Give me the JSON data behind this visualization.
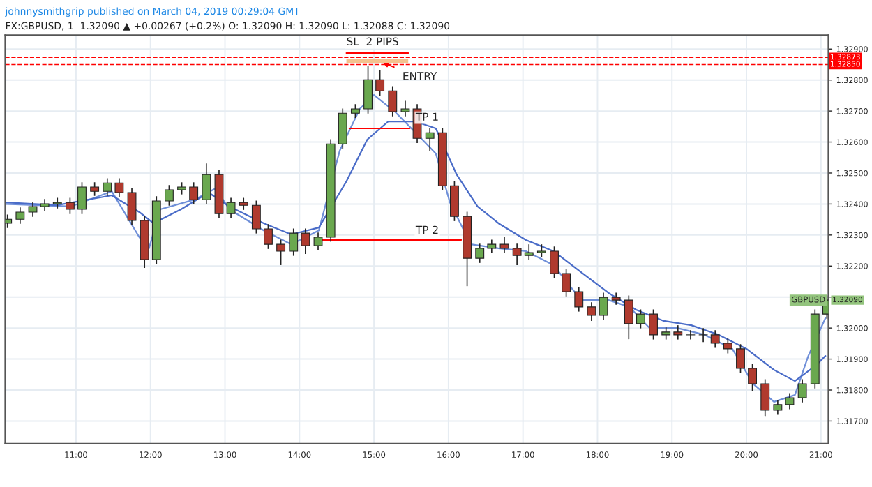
{
  "chart_data": {
    "type": "candlestick",
    "title": "johnnysmithgrip published on March 04, 2019 00:29:04 GMT",
    "subtitle": "FX:GBPUSD, 1  1.32090 ▲ +0.00267 (+0.2%) O: 1.32090 H: 1.32090 L: 1.32088 C: 1.32090",
    "x": [
      10.08,
      10.25,
      10.42,
      10.58,
      10.75,
      10.92,
      11.08,
      11.25,
      11.42,
      11.58,
      11.75,
      11.92,
      12.08,
      12.25,
      12.42,
      12.58,
      12.75,
      12.92,
      13.08,
      13.25,
      13.42,
      13.58,
      13.75,
      13.92,
      14.08,
      14.25,
      14.42,
      14.58,
      14.75,
      14.92,
      15.08,
      15.25,
      15.42,
      15.58,
      15.75,
      15.92,
      16.08,
      16.25,
      16.42,
      16.58,
      16.75,
      16.92,
      17.08,
      17.25,
      17.42,
      17.58,
      17.75,
      17.92,
      18.08,
      18.25,
      18.42,
      18.58,
      18.75,
      18.92,
      19.08,
      19.25,
      19.42,
      19.58,
      19.75,
      19.92,
      20.08,
      20.25,
      20.42,
      20.58,
      20.75,
      20.92,
      21.08
    ],
    "ohlc": [
      [
        1.32338,
        1.32366,
        1.32323,
        1.32351
      ],
      [
        1.32351,
        1.32389,
        1.32336,
        1.32374
      ],
      [
        1.32374,
        1.32407,
        1.32359,
        1.32392
      ],
      [
        1.32392,
        1.32416,
        1.32377,
        1.32401
      ],
      [
        1.32401,
        1.3242,
        1.32386,
        1.32405
      ],
      [
        1.32405,
        1.3242,
        1.32368,
        1.32383
      ],
      [
        1.32383,
        1.3247,
        1.32368,
        1.32455
      ],
      [
        1.32455,
        1.3247,
        1.32426,
        1.32441
      ],
      [
        1.32441,
        1.32483,
        1.32426,
        1.32468
      ],
      [
        1.32468,
        1.32483,
        1.32422,
        1.32437
      ],
      [
        1.32437,
        1.32452,
        1.32332,
        1.32347
      ],
      [
        1.32347,
        1.32362,
        1.32194,
        1.32221
      ],
      [
        1.32221,
        1.32425,
        1.32206,
        1.3241
      ],
      [
        1.3241,
        1.32461,
        1.32395,
        1.32446
      ],
      [
        1.32446,
        1.3247,
        1.32431,
        1.32455
      ],
      [
        1.32455,
        1.3247,
        1.32399,
        1.32414
      ],
      [
        1.32414,
        1.32531,
        1.32399,
        1.32495
      ],
      [
        1.32495,
        1.3251,
        1.32354,
        1.32369
      ],
      [
        1.32369,
        1.3242,
        1.32354,
        1.32405
      ],
      [
        1.32405,
        1.3242,
        1.32381,
        1.32396
      ],
      [
        1.32396,
        1.32411,
        1.32305,
        1.3232
      ],
      [
        1.3232,
        1.32335,
        1.32255,
        1.3227
      ],
      [
        1.3227,
        1.32285,
        1.32203,
        1.32248
      ],
      [
        1.32248,
        1.32321,
        1.32233,
        1.32306
      ],
      [
        1.32306,
        1.32321,
        1.32239,
        1.32266
      ],
      [
        1.32266,
        1.32308,
        1.32251,
        1.32293
      ],
      [
        1.32293,
        1.32609,
        1.32278,
        1.32594
      ],
      [
        1.32594,
        1.32708,
        1.32579,
        1.32693
      ],
      [
        1.32693,
        1.32722,
        1.32678,
        1.32707
      ],
      [
        1.32707,
        1.32846,
        1.32692,
        1.32801
      ],
      [
        1.32801,
        1.32832,
        1.3275,
        1.32765
      ],
      [
        1.32765,
        1.3278,
        1.32683,
        1.32698
      ],
      [
        1.32698,
        1.32733,
        1.32683,
        1.32707
      ],
      [
        1.32707,
        1.32722,
        1.32597,
        1.32612
      ],
      [
        1.32612,
        1.32645,
        1.32572,
        1.3263
      ],
      [
        1.3263,
        1.32645,
        1.32444,
        1.32459
      ],
      [
        1.32459,
        1.32474,
        1.32345,
        1.3236
      ],
      [
        1.3236,
        1.32375,
        1.32135,
        1.32225
      ],
      [
        1.32225,
        1.32272,
        1.3221,
        1.32257
      ],
      [
        1.32257,
        1.32285,
        1.32242,
        1.3227
      ],
      [
        1.3227,
        1.32293,
        1.32242,
        1.32257
      ],
      [
        1.32257,
        1.32272,
        1.32203,
        1.32234
      ],
      [
        1.32234,
        1.3227,
        1.32219,
        1.32243
      ],
      [
        1.32243,
        1.3227,
        1.32228,
        1.32248
      ],
      [
        1.32248,
        1.32263,
        1.32161,
        1.32176
      ],
      [
        1.32176,
        1.32191,
        1.32102,
        1.32117
      ],
      [
        1.32117,
        1.32132,
        1.32053,
        1.32068
      ],
      [
        1.32068,
        1.32083,
        1.32023,
        1.32041
      ],
      [
        1.32041,
        1.32114,
        1.32026,
        1.32099
      ],
      [
        1.32099,
        1.32114,
        1.32075,
        1.3209
      ],
      [
        1.3209,
        1.32105,
        1.31964,
        1.32014
      ],
      [
        1.32014,
        1.3206,
        1.31999,
        1.32045
      ],
      [
        1.32045,
        1.3206,
        1.31963,
        1.31978
      ],
      [
        1.31978,
        1.32002,
        1.31963,
        1.31987
      ],
      [
        1.31987,
        1.32009,
        1.31963,
        1.31978
      ],
      [
        1.31978,
        1.31993,
        1.31963,
        1.31978
      ],
      [
        1.31978,
        1.32,
        1.31955,
        1.31978
      ],
      [
        1.31978,
        1.31993,
        1.31936,
        1.31951
      ],
      [
        1.31951,
        1.31966,
        1.31918,
        1.31933
      ],
      [
        1.31933,
        1.31948,
        1.31855,
        1.3187
      ],
      [
        1.3187,
        1.31885,
        1.31798,
        1.3182
      ],
      [
        1.3182,
        1.31835,
        1.31716,
        1.31735
      ],
      [
        1.31735,
        1.31768,
        1.3172,
        1.31753
      ],
      [
        1.31753,
        1.3179,
        1.31738,
        1.31775
      ],
      [
        1.31775,
        1.31835,
        1.3176,
        1.3182
      ],
      [
        1.3182,
        1.3206,
        1.31805,
        1.32045
      ],
      [
        1.32045,
        1.32105,
        1.3203,
        1.3209
      ]
    ],
    "series": [
      {
        "type": "line",
        "color": "#6f8fd8",
        "x": [
          10.06,
          10.93,
          11.48,
          11.85,
          11.98,
          12.13,
          12.59,
          12.87,
          13.06,
          13.52,
          13.89,
          14.26,
          14.54,
          14.81,
          15.0,
          15.28,
          15.56,
          15.83,
          16.02,
          16.3,
          16.67,
          17.04,
          17.41,
          17.78,
          18.15,
          18.43,
          18.7,
          19.07,
          19.44,
          19.81,
          20.09,
          20.37,
          20.65,
          20.83,
          21.06
        ],
        "values": [
          1.324,
          1.32392,
          1.32441,
          1.32293,
          1.32257,
          1.32383,
          1.32414,
          1.3245,
          1.32383,
          1.32315,
          1.3227,
          1.32315,
          1.32572,
          1.32707,
          1.32752,
          1.32698,
          1.3263,
          1.32563,
          1.32405,
          1.3227,
          1.32257,
          1.32248,
          1.32203,
          1.3209,
          1.3209,
          1.32068,
          1.32,
          1.32,
          1.31978,
          1.31933,
          1.3182,
          1.31762,
          1.31784,
          1.3191,
          1.32032
        ]
      },
      {
        "type": "line",
        "color": "#4a6cc8",
        "x": [
          10.06,
          10.74,
          11.48,
          11.85,
          12.04,
          12.41,
          12.78,
          13.06,
          13.52,
          13.89,
          14.26,
          14.63,
          14.91,
          15.19,
          15.56,
          15.83,
          16.11,
          16.39,
          16.67,
          17.04,
          17.41,
          17.78,
          18.15,
          18.52,
          18.89,
          19.26,
          19.63,
          20.0,
          20.37,
          20.65,
          20.93,
          21.06
        ],
        "values": [
          1.32405,
          1.32396,
          1.32428,
          1.32374,
          1.32338,
          1.32383,
          1.32437,
          1.32392,
          1.32338,
          1.32302,
          1.32324,
          1.32473,
          1.32608,
          1.32666,
          1.32666,
          1.32644,
          1.32495,
          1.32392,
          1.32338,
          1.32284,
          1.32248,
          1.3218,
          1.32113,
          1.32059,
          1.32023,
          1.32009,
          1.31978,
          1.31933,
          1.31865,
          1.31829,
          1.31879,
          1.3191
        ]
      },
      {
        "type": "line",
        "color": "#ff0000",
        "x": [
          14.63,
          15.46
        ],
        "values": [
          1.32887,
          1.32887
        ]
      },
      {
        "type": "line",
        "color": "#ff0000",
        "x": [
          14.67,
          15.48
        ],
        "values": [
          1.32644,
          1.32644
        ]
      },
      {
        "type": "line",
        "color": "#ff0000",
        "x": [
          14.28,
          16.17
        ],
        "values": [
          1.32284,
          1.32284
        ]
      }
    ],
    "ref_lines": [
      {
        "axis": "y",
        "value": 1.32873,
        "label": "1.32873",
        "color": "#ff0000",
        "line_style": "dashed"
      },
      {
        "axis": "y",
        "value": 1.3285,
        "label": "1.32850",
        "color": "#ff0000",
        "line_style": "dashed"
      }
    ],
    "annotations": [
      {
        "text": "SL  2 PIPS",
        "x": 14.63,
        "y": 1.32905
      },
      {
        "text": "ENTRY",
        "x": 15.07,
        "y": 1.3286
      },
      {
        "text": "TP 1",
        "x": 15.56,
        "y": 1.32662
      },
      {
        "text": "TP 2",
        "x": 15.56,
        "y": 1.32297
      },
      {
        "text": "GBPUSD",
        "x": 21.06,
        "y": 1.3209
      },
      {
        "text": "1.32090",
        "x": 21.1,
        "y": 1.3209
      }
    ],
    "xlim": [
      10.05,
      21.1
    ],
    "ylim": [
      1.31627,
      1.32945
    ],
    "xticks": [
      {
        "value": 11,
        "label": "11:00"
      },
      {
        "value": 12,
        "label": "12:00"
      },
      {
        "value": 13,
        "label": "13:00"
      },
      {
        "value": 14,
        "label": "14:00"
      },
      {
        "value": 15,
        "label": "15:00"
      },
      {
        "value": 16,
        "label": "16:00"
      },
      {
        "value": 17,
        "label": "17:00"
      },
      {
        "value": 18,
        "label": "18:00"
      },
      {
        "value": 19,
        "label": "19:00"
      },
      {
        "value": 20,
        "label": "20:00"
      },
      {
        "value": 21,
        "label": "21:00"
      }
    ],
    "yticks": [
      {
        "value": 1.317,
        "label": "1.31700"
      },
      {
        "value": 1.318,
        "label": "1.31800"
      },
      {
        "value": 1.319,
        "label": "1.31900"
      },
      {
        "value": 1.32,
        "label": "1.32000"
      },
      {
        "value": 1.321,
        "label": null
      },
      {
        "value": 1.322,
        "label": "1.32200"
      },
      {
        "value": 1.323,
        "label": "1.32300"
      },
      {
        "value": 1.324,
        "label": "1.32400"
      },
      {
        "value": 1.325,
        "label": "1.32500"
      },
      {
        "value": 1.326,
        "label": "1.32600"
      },
      {
        "value": 1.327,
        "label": "1.32700"
      },
      {
        "value": 1.328,
        "label": "1.32800"
      },
      {
        "value": 1.329,
        "label": "1.32900"
      }
    ],
    "grid": true,
    "legend": false
  }
}
